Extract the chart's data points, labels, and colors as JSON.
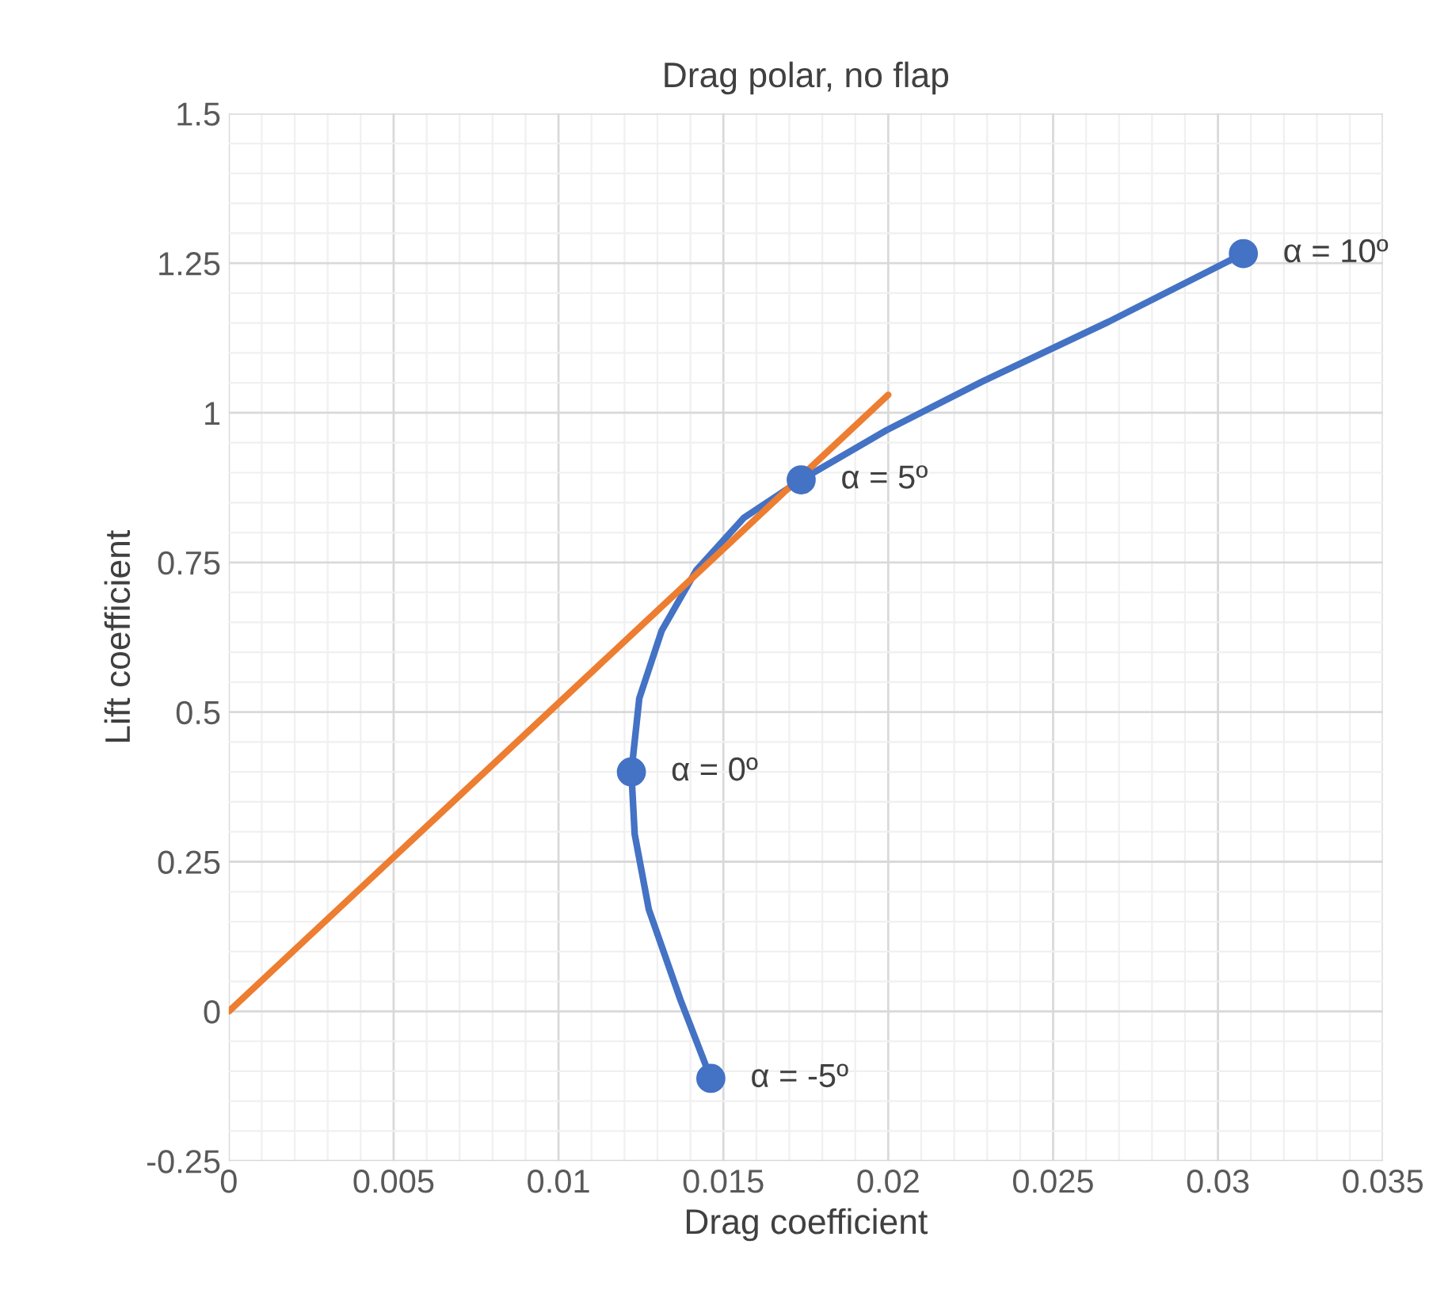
{
  "chart_data": {
    "type": "line",
    "title": "Drag polar, no flap",
    "xlabel": "Drag coefficient",
    "ylabel": "Lift coefficient",
    "series": [
      {
        "color": "#4472c4",
        "x": [
          0.01462,
          0.0137,
          0.01274,
          0.01231,
          0.01221,
          0.01245,
          0.01313,
          0.01418,
          0.01563,
          0.01736,
          0.01995,
          0.02284,
          0.02668,
          0.03077
        ],
        "values": [
          -0.112,
          0.019,
          0.17,
          0.296,
          0.4,
          0.523,
          0.636,
          0.737,
          0.825,
          0.888,
          0.971,
          1.052,
          1.152,
          1.266
        ]
      },
      {
        "type": "scatter",
        "color": "#4472c4",
        "marker": "circle",
        "x": [
          0.01462,
          0.01221,
          0.01736,
          0.03077
        ],
        "values": [
          -0.112,
          0.4,
          0.888,
          1.266
        ]
      },
      {
        "type": "line",
        "color": "#ed7d31",
        "x": [
          0,
          0.02
        ],
        "values": [
          0,
          1.03
        ]
      }
    ],
    "annotations": [
      {
        "text": "α = -5º",
        "x": 0.01462,
        "y": -0.112
      },
      {
        "text": "α = 0º",
        "x": 0.01221,
        "y": 0.4
      },
      {
        "text": "α = 5º",
        "x": 0.01736,
        "y": 0.888
      },
      {
        "text": "α = 10º",
        "x": 0.03077,
        "y": 1.266
      }
    ],
    "xlim": [
      0,
      0.035
    ],
    "xticks": [
      0,
      0.005,
      0.01,
      0.015,
      0.02,
      0.025,
      0.03,
      0.035
    ],
    "ylim": [
      -0.25,
      1.5
    ],
    "yticks": [
      -0.25,
      0,
      0.25,
      0.5,
      0.75,
      1,
      1.25,
      1.5
    ],
    "grid": true,
    "legend": false
  }
}
